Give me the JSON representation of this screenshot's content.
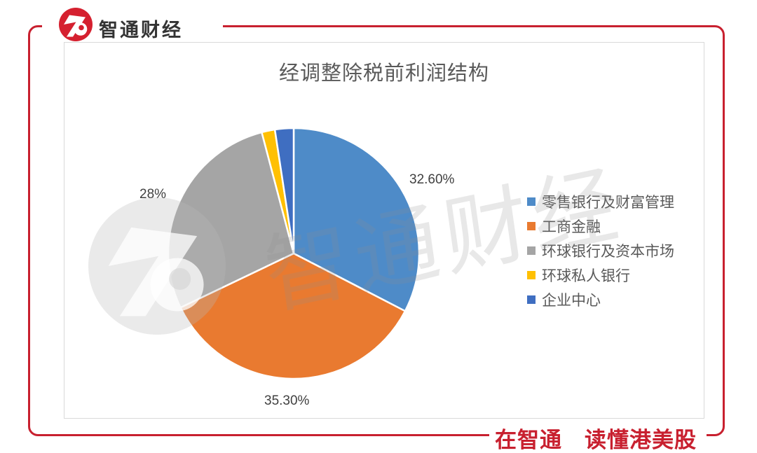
{
  "brand": {
    "name": "智通财经"
  },
  "slogan": "在智通　读懂港美股",
  "watermark": {
    "text": "智通财经"
  },
  "chart_data": {
    "type": "pie",
    "title": "经调整除税前利润结构",
    "unit": "%",
    "legend_position": "right",
    "start_angle_deg": 0,
    "direction": "clockwise",
    "series": [
      {
        "label": "零售银行及财富管理",
        "value": 32.6,
        "display_label": "32.60%",
        "color": "#4E8BC8"
      },
      {
        "label": "工商金融",
        "value": 35.3,
        "display_label": "35.30%",
        "color": "#E97A30"
      },
      {
        "label": "环球银行及资本市场",
        "value": 28.0,
        "display_label": "28%",
        "color": "#A5A5A5"
      },
      {
        "label": "环球私人银行",
        "value": 1.7,
        "display_label": "",
        "color": "#FFC003"
      },
      {
        "label": "企业中心",
        "value": 2.4,
        "display_label": "",
        "color": "#3F6EC1"
      }
    ]
  },
  "colors": {
    "brand_red": "#C8202F",
    "panel_border": "#D9D9D9",
    "title_gray": "#595959",
    "label_gray": "#404040"
  }
}
